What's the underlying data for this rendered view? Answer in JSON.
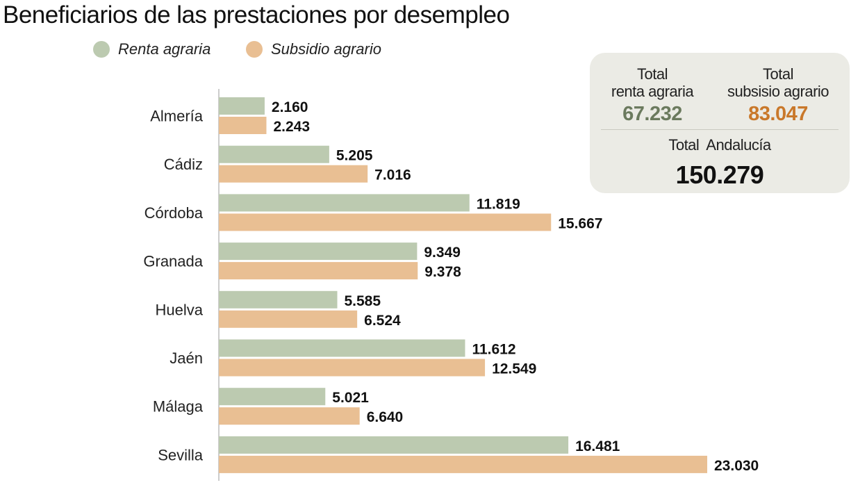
{
  "chart_data": {
    "type": "bar",
    "orientation": "horizontal",
    "title": "Beneficiarios de las prestaciones por desempleo",
    "categories": [
      "Almería",
      "Cádiz",
      "Córdoba",
      "Granada",
      "Huelva",
      "Jaén",
      "Málaga",
      "Sevilla"
    ],
    "series": [
      {
        "name": "Renta agraria",
        "color": "#bccab0",
        "values": [
          2160,
          5205,
          11819,
          9349,
          5585,
          11612,
          5021,
          16481
        ],
        "labels": [
          "2.160",
          "5.205",
          "11.819",
          "9.349",
          "5.585",
          "11.612",
          "5.021",
          "16.481"
        ]
      },
      {
        "name": "Subsidio agrario",
        "color": "#e9bf93",
        "values": [
          2243,
          7016,
          15667,
          9378,
          6524,
          12549,
          6640,
          23030
        ],
        "labels": [
          "2.243",
          "7.016",
          "15.667",
          "9.378",
          "6.524",
          "12.549",
          "6.640",
          "23.030"
        ]
      }
    ],
    "xlim": [
      0,
      23030
    ],
    "grid": false,
    "legend": "top-left"
  },
  "summary": {
    "renta_label_1": "Total",
    "renta_label_2": "renta agraria",
    "renta_value": "67.232",
    "renta_color": "#6b7a5e",
    "subsidio_label_1": "Total",
    "subsidio_label_2": "subsisio agrario",
    "subsidio_value": "83.047",
    "subsidio_color": "#c9782a",
    "total_label": "Total  Andalucía",
    "total_value": "150.279"
  }
}
